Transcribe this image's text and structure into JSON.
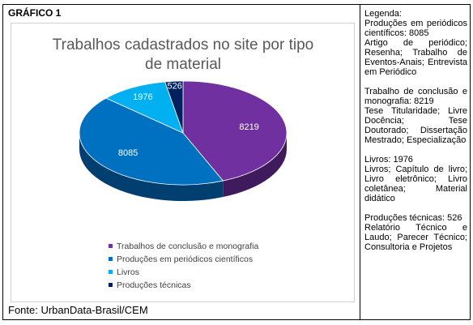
{
  "heading": "GRÁFICO 1",
  "source": "Fonte: UrbanData-Brasil/CEM",
  "legend_panel": {
    "title": "Legenda:",
    "blocks": [
      {
        "head": "Produções em periódicos científicos: 8085",
        "body": "Artigo de periódico; Resenha; Trabalho de Eventos-Anais; Entrevista em Periódico"
      },
      {
        "head": "Trabalho de conclusão e monografia: 8219",
        "body": "Tese Titularidade; Livre Docência; Tese Doutorado; Dissertação Mestrado; Especialização"
      },
      {
        "head": "Livros: 1976",
        "body": "Livros; Capítulo de livro; Livro eletrônico; Livro coletânea; Material didático"
      },
      {
        "head": "Produções técnicas: 526",
        "body": "Relatório Técnico e Laudo; Parecer Técnico; Consultoria e Projetos"
      }
    ]
  },
  "chart_data": {
    "type": "pie",
    "title": "Trabalhos cadastrados no site por tipo de material",
    "slices": [
      {
        "label": "Trabalhos de conclusão e monografia",
        "value": 8219,
        "color": "#7030a0",
        "side": "#3f1a5c"
      },
      {
        "label": "Produções em periódicos científicos",
        "value": 8085,
        "color": "#0070c0",
        "side": "#003f70"
      },
      {
        "label": "Livros",
        "value": 1976,
        "color": "#00b0f0",
        "side": "#006a91"
      },
      {
        "label": "Produções técnicas",
        "value": 526,
        "color": "#002060",
        "side": "#00102f"
      }
    ],
    "legend_position": "bottom-left"
  }
}
